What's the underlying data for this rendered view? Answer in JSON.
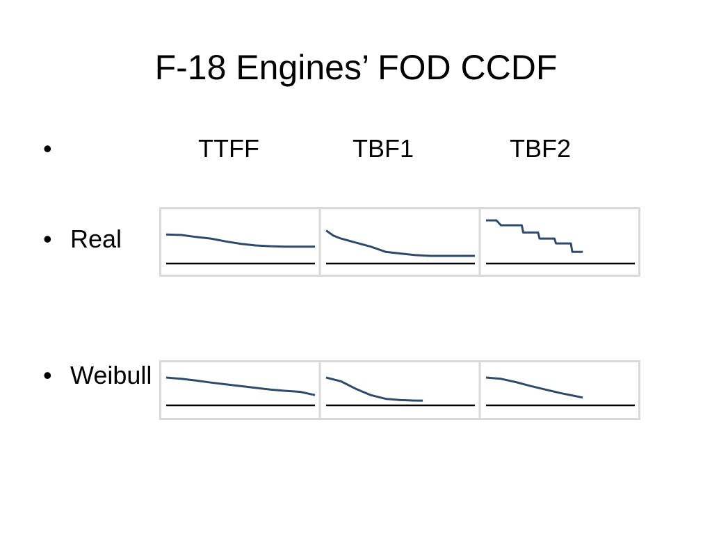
{
  "slide": {
    "title": "F-18 Engines’ FOD CCDF",
    "header_bullet": "•",
    "rows": [
      {
        "bullet": "•",
        "label": "Real"
      },
      {
        "bullet": "•",
        "label": "Weibull"
      }
    ],
    "columns": [
      "TTFF",
      "TBF1",
      "TBF2"
    ]
  },
  "colors": {
    "line": "#2e4a6b",
    "baseline": "#000000",
    "frame": "#d9d9d9"
  },
  "chart_data": [
    {
      "type": "line",
      "row": "Real",
      "column": "TTFF",
      "x": [
        0,
        0.1,
        0.2,
        0.3,
        0.4,
        0.5,
        0.6,
        0.7,
        0.8,
        0.9,
        1.0
      ],
      "y": [
        0.65,
        0.64,
        0.59,
        0.55,
        0.48,
        0.42,
        0.38,
        0.36,
        0.35,
        0.35,
        0.35
      ]
    },
    {
      "type": "line",
      "row": "Real",
      "column": "TBF1",
      "x": [
        0,
        0.05,
        0.1,
        0.15,
        0.2,
        0.3,
        0.4,
        0.5,
        0.6,
        0.7,
        1.0
      ],
      "y": [
        0.75,
        0.62,
        0.55,
        0.5,
        0.45,
        0.35,
        0.22,
        0.18,
        0.14,
        0.12,
        0.12
      ]
    },
    {
      "type": "line",
      "row": "Real",
      "column": "TBF2",
      "x": [
        0,
        0.07,
        0.1,
        0.24,
        0.25,
        0.35,
        0.36,
        0.46,
        0.47,
        0.57,
        0.58,
        0.65
      ],
      "y": [
        1.0,
        1.0,
        0.88,
        0.88,
        0.7,
        0.7,
        0.55,
        0.55,
        0.43,
        0.43,
        0.22,
        0.22
      ]
    },
    {
      "type": "line",
      "row": "Weibull",
      "column": "TTFF",
      "x": [
        0,
        0.1,
        0.2,
        0.3,
        0.4,
        0.5,
        0.6,
        0.7,
        0.8,
        0.9,
        1.0
      ],
      "y": [
        1.0,
        0.95,
        0.88,
        0.8,
        0.73,
        0.66,
        0.59,
        0.52,
        0.47,
        0.43,
        0.3
      ]
    },
    {
      "type": "line",
      "row": "Weibull",
      "column": "TBF1",
      "x": [
        0,
        0.1,
        0.2,
        0.3,
        0.4,
        0.5,
        0.6,
        0.65
      ],
      "y": [
        1.0,
        0.85,
        0.55,
        0.3,
        0.15,
        0.1,
        0.08,
        0.08
      ]
    },
    {
      "type": "line",
      "row": "Weibull",
      "column": "TBF2",
      "x": [
        0,
        0.1,
        0.2,
        0.3,
        0.4,
        0.5,
        0.6,
        0.65
      ],
      "y": [
        1.0,
        0.95,
        0.82,
        0.66,
        0.52,
        0.38,
        0.26,
        0.2
      ]
    }
  ]
}
